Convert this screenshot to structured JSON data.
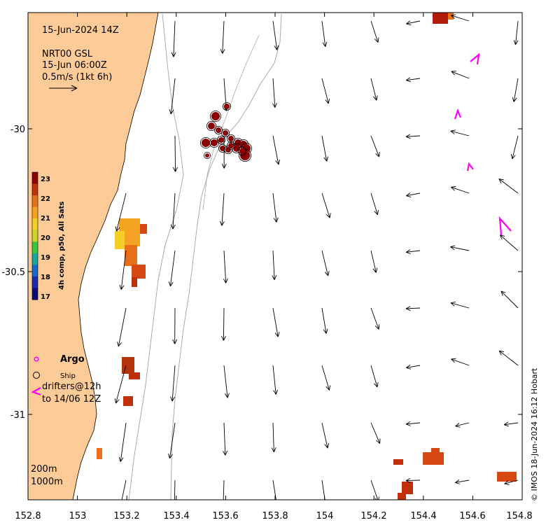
{
  "header": {
    "time": "15-Jun-2024 14Z",
    "product": "NRT00 GSL",
    "product_time": "15-Jun 06:00Z",
    "vector_scale": "0.5m/s (1kt 6h)"
  },
  "colorbar": {
    "label": "4h comp, p50, All Sats",
    "ticks": [
      "23",
      "22",
      "21",
      "20",
      "19",
      "18",
      "17"
    ],
    "min": 17,
    "max": 23,
    "colors": [
      "#8b0000",
      "#c0300a",
      "#e8701a",
      "#f3a321",
      "#f6cf26",
      "#c8d62a",
      "#3cc43c",
      "#18a89a",
      "#1868c8",
      "#1a2aa8",
      "#0a0a7a"
    ]
  },
  "legend": {
    "argo": "Argo",
    "ship": "Ship",
    "drifters_line1": "drifters@12h",
    "drifters_line2": "to 14/06 12Z"
  },
  "depth_contours": {
    "c200": "200m",
    "c1000": "1000m"
  },
  "axes": {
    "x_ticks": [
      "152.8",
      "153",
      "153.2",
      "153.4",
      "153.6",
      "153.8",
      "154",
      "154.2",
      "154.4",
      "154.6",
      "154.8"
    ],
    "y_ticks": [
      "-30",
      "-30.5",
      "-31"
    ],
    "xlim": [
      152.8,
      154.8
    ],
    "ylim": [
      -31.3,
      -29.6
    ]
  },
  "footer": {
    "credit": "© IMOS 18-Jun-2024 16:12 Hobart"
  },
  "colors": {
    "land": "#fdcb97",
    "argo": "#ff00ff",
    "ship_marker": "#8b0000",
    "contour": "#aaaaaa"
  }
}
